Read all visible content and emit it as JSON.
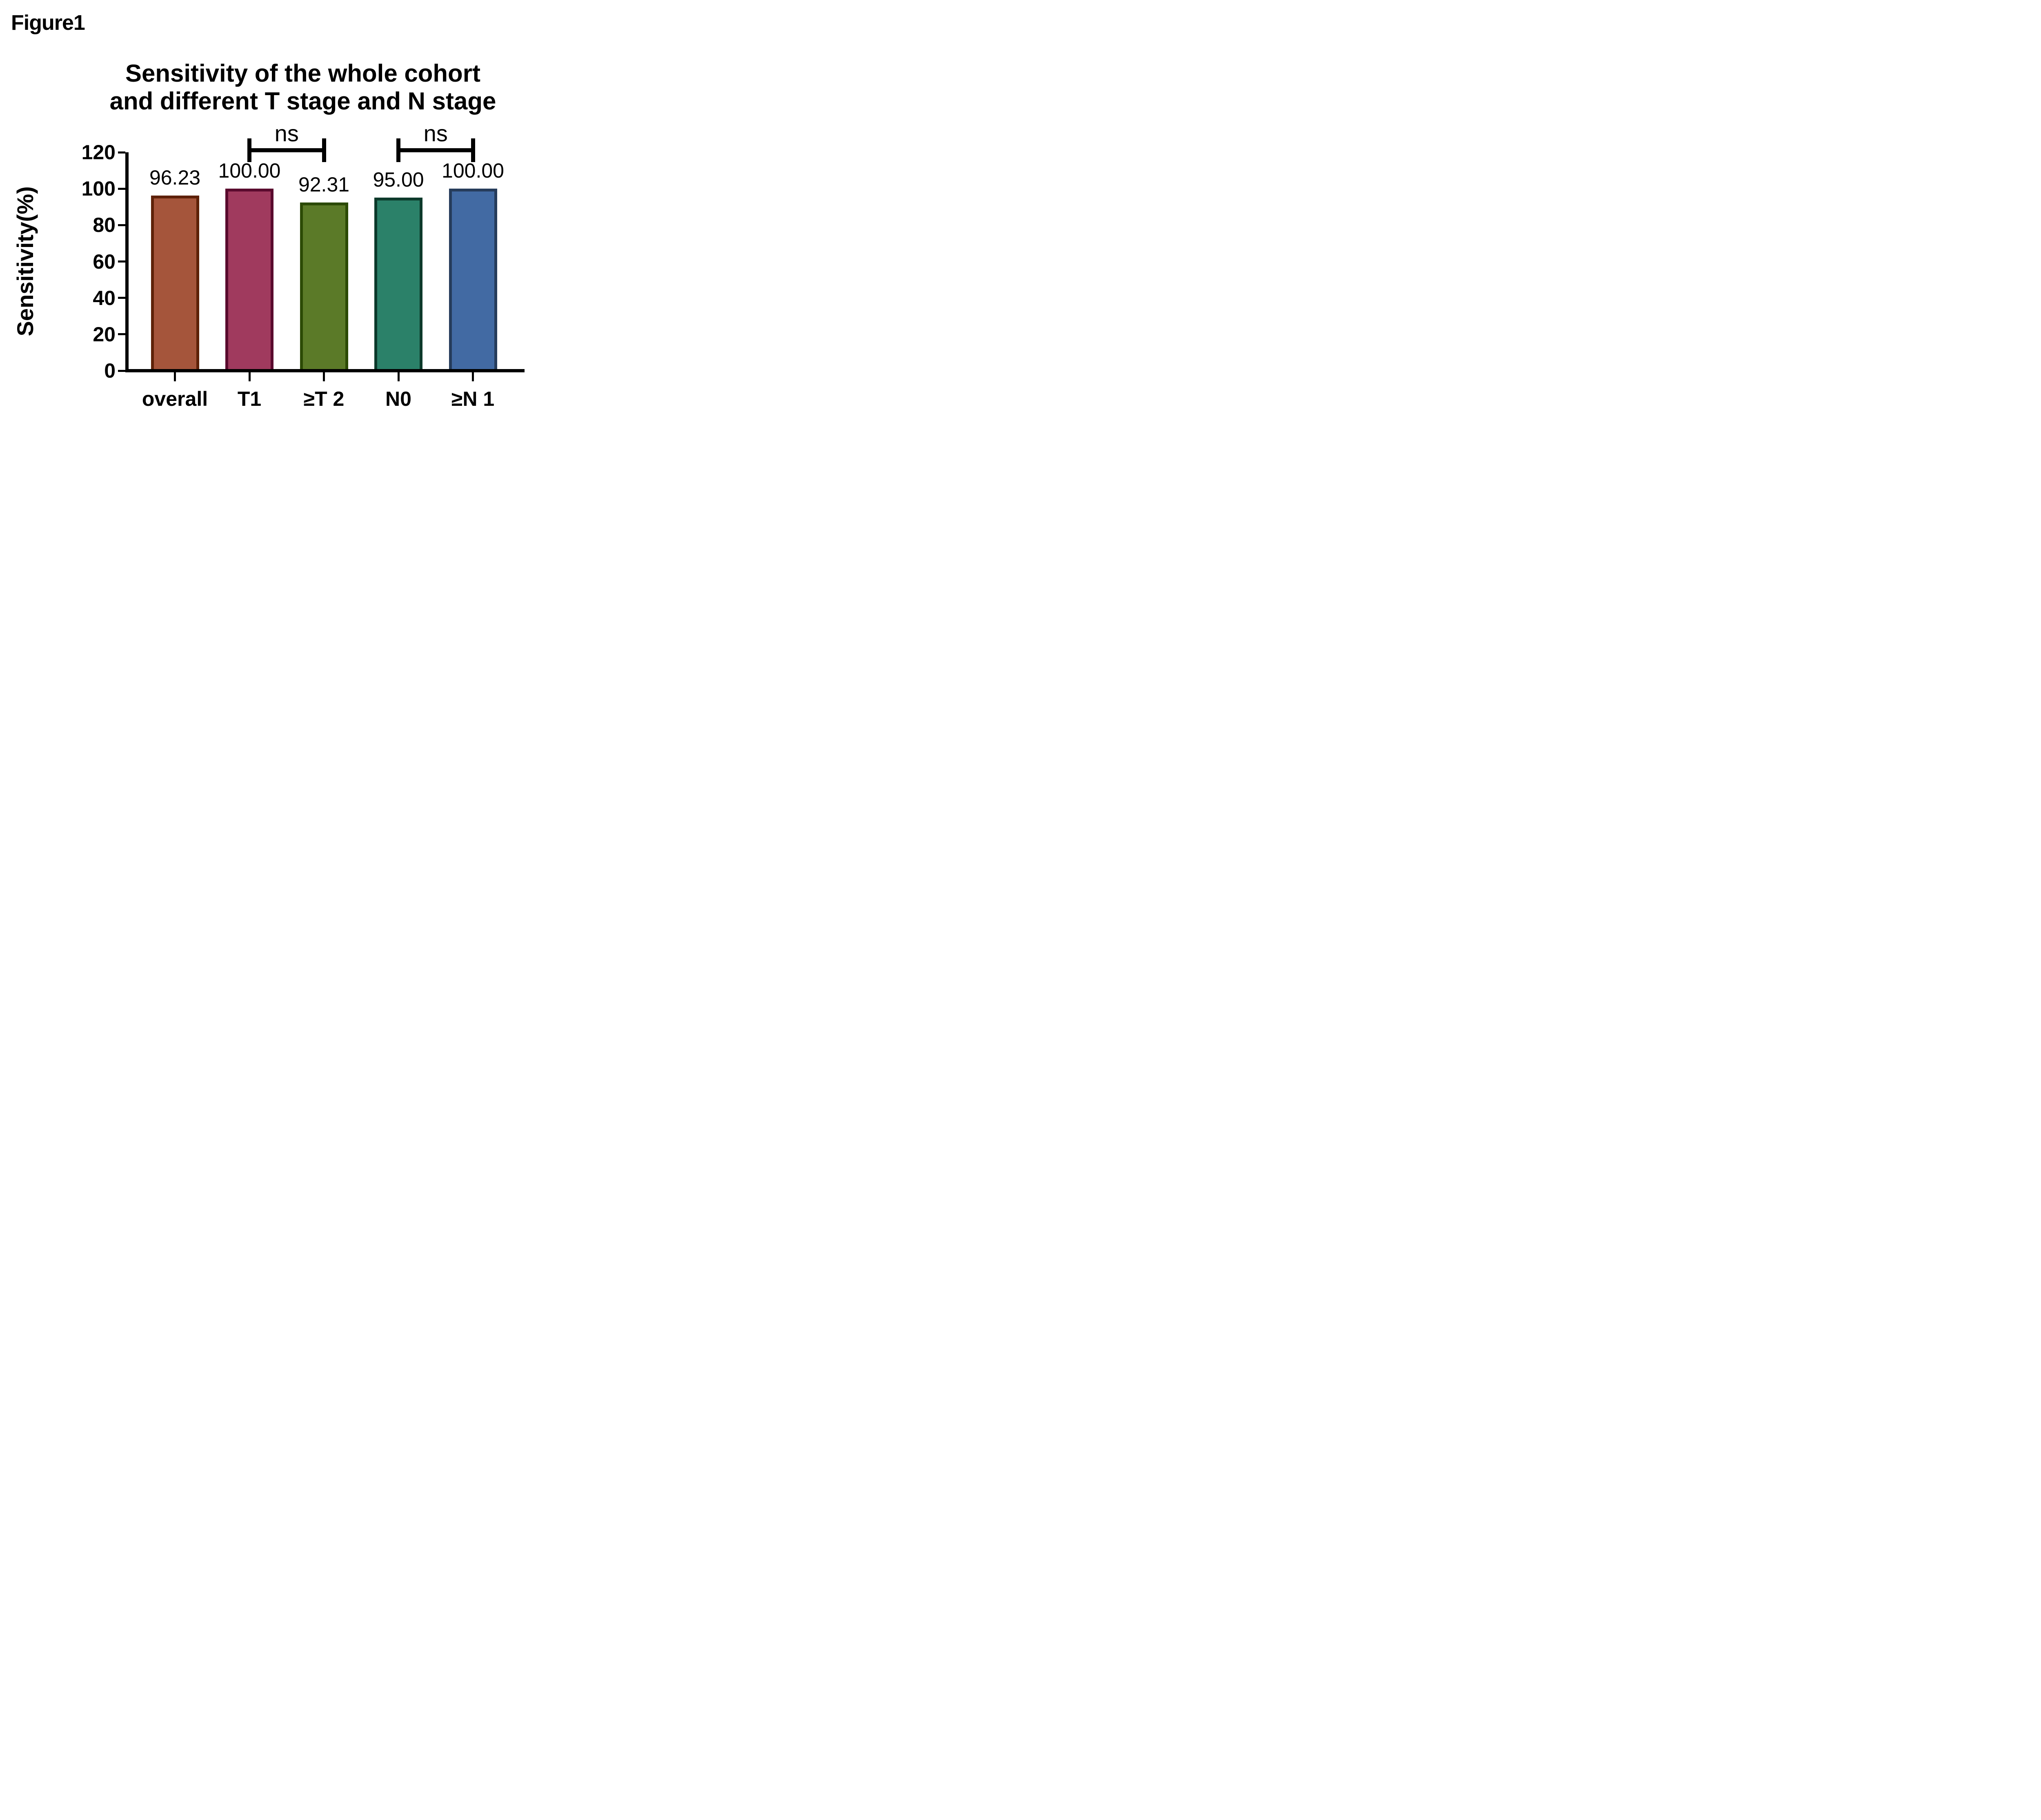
{
  "figure_label": "Figure1",
  "chart_data": {
    "type": "bar",
    "title_line1": "Sensitivity of the whole cohort",
    "title_line2": "and different T stage and N stage",
    "ylabel": "Sensitivity(%)",
    "ylim": [
      0,
      120
    ],
    "yticks": [
      "0",
      "20",
      "40",
      "60",
      "80",
      "100",
      "120"
    ],
    "categories": [
      "overall",
      "T1",
      "≥T 2",
      "N0",
      "≥N 1"
    ],
    "values": [
      96.23,
      100.0,
      92.31,
      95.0,
      100.0
    ],
    "value_labels": [
      "96.23",
      "100.00",
      "92.31",
      "95.00",
      "100.00"
    ],
    "bar_fill_colors": [
      "#A5553B",
      "#A03A5E",
      "#5B7A28",
      "#2B8169",
      "#426AA3"
    ],
    "bar_border_colors": [
      "#5E2108",
      "#5A0A2E",
      "#2C4A05",
      "#0C3A2B",
      "#263C5B"
    ],
    "axis_color": "#000000",
    "grid": false,
    "legend": "none",
    "significance": [
      {
        "between": [
          "T1",
          "≥T 2"
        ],
        "label": "ns"
      },
      {
        "between": [
          "N0",
          "≥N 1"
        ],
        "label": "ns"
      }
    ]
  }
}
